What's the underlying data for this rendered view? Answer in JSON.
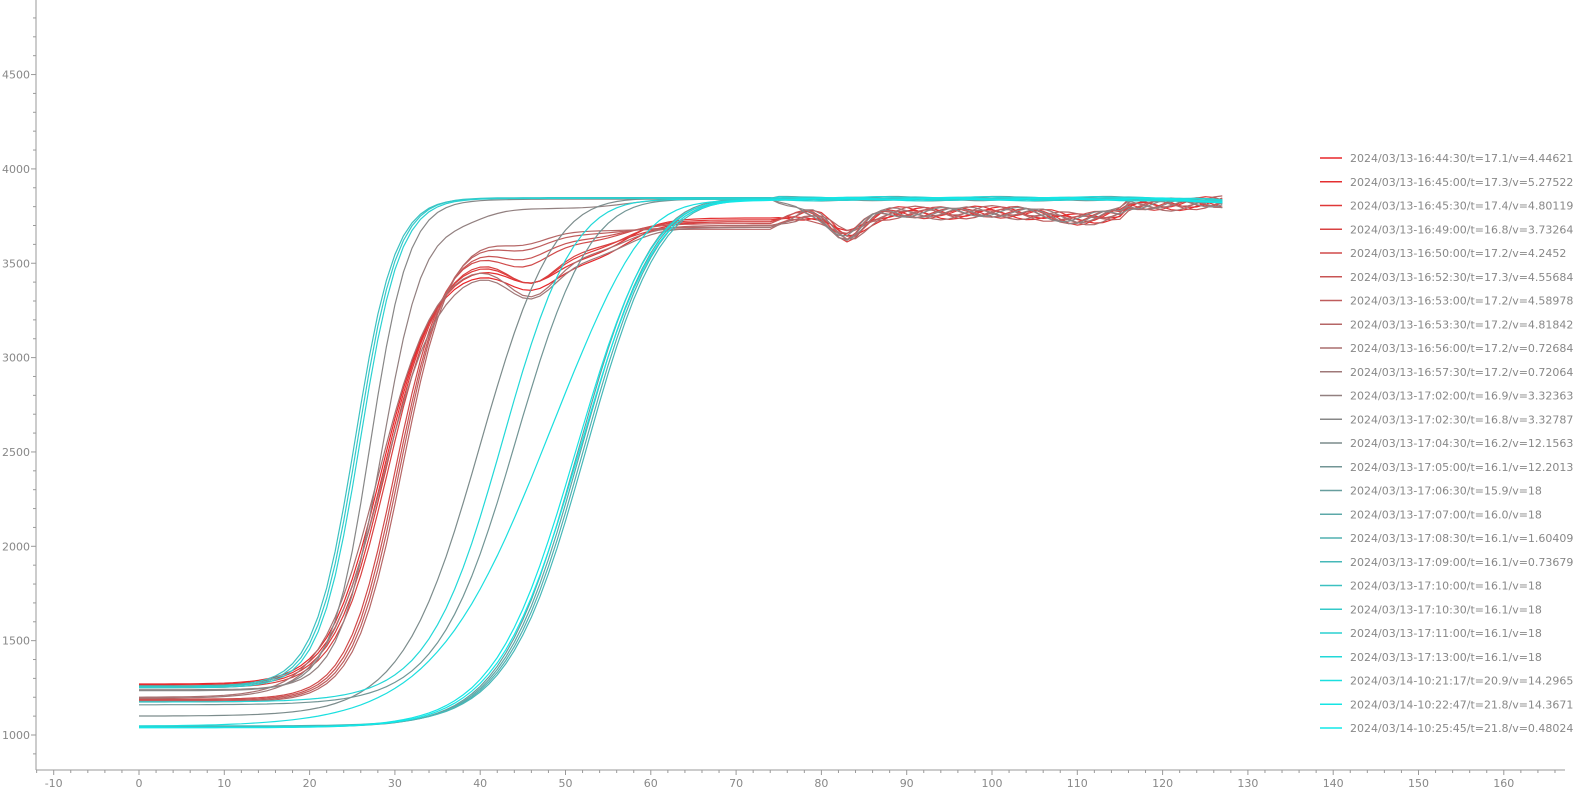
{
  "chart_data": {
    "type": "line",
    "xlim": [
      -12,
      166
    ],
    "ylim": [
      800,
      4850
    ],
    "x_ticks": [
      -10,
      0,
      10,
      20,
      30,
      40,
      50,
      60,
      70,
      80,
      90,
      100,
      110,
      120,
      130,
      140,
      150,
      160
    ],
    "y_ticks": [
      1000,
      1500,
      2000,
      2500,
      3000,
      3500,
      4000,
      4500
    ],
    "grid": false,
    "legend_position": "right",
    "series": [
      {
        "name": "2024/03/13-16:44:30/t=17.1/v=4.44621",
        "color": "#e8262a"
      },
      {
        "name": "2024/03/13-16:45:00/t=17.3/v=5.27522",
        "color": "#e42f30"
      },
      {
        "name": "2024/03/13-16:45:30/t=17.4/v=4.80119",
        "color": "#df3838"
      },
      {
        "name": "2024/03/13-16:49:00/t=16.8/v=3.73264",
        "color": "#d84141"
      },
      {
        "name": "2024/03/13-16:50:00/t=17.2/v=4.2452",
        "color": "#d04a4a"
      },
      {
        "name": "2024/03/13-16:52:30/t=17.3/v=4.55684",
        "color": "#c85454"
      },
      {
        "name": "2024/03/13-16:53:00/t=17.2/v=4.58978",
        "color": "#bf5d5d"
      },
      {
        "name": "2024/03/13-16:53:30/t=17.2/v=4.81842",
        "color": "#b56666"
      },
      {
        "name": "2024/03/13-16:56:00/t=17.2/v=0.72684",
        "color": "#aa6f6f"
      },
      {
        "name": "2024/03/13-16:57:30/t=17.2/v=0.72064",
        "color": "#9f7878"
      },
      {
        "name": "2024/03/13-17:02:00/t=16.9/v=3.32363",
        "color": "#928080"
      },
      {
        "name": "2024/03/13-17:02:30/t=16.8/v=3.32787",
        "color": "#878787"
      },
      {
        "name": "2024/03/13-17:04:30/t=16.2/v=12.1563",
        "color": "#7c8c8c"
      },
      {
        "name": "2024/03/13-17:05:00/t=16.1/v=12.2013",
        "color": "#729595"
      },
      {
        "name": "2024/03/13-17:06:30/t=15.9/v=18",
        "color": "#679e9e"
      },
      {
        "name": "2024/03/13-17:07:00/t=16.0/v=18",
        "color": "#5ca8a8"
      },
      {
        "name": "2024/03/13-17:08:30/t=16.1/v=1.60409",
        "color": "#51b0b0"
      },
      {
        "name": "2024/03/13-17:09:00/t=16.1/v=0.73679",
        "color": "#46b8b8"
      },
      {
        "name": "2024/03/13-17:10:00/t=16.1/v=18",
        "color": "#3cc1c1"
      },
      {
        "name": "2024/03/13-17:10:30/t=16.1/v=18",
        "color": "#33c9c9"
      },
      {
        "name": "2024/03/13-17:11:00/t=16.1/v=18",
        "color": "#2ad1d1"
      },
      {
        "name": "2024/03/13-17:13:00/t=16.1/v=18",
        "color": "#22d8d8"
      },
      {
        "name": "2024/03/14-10:21:17/t=20.9/v=14.2965",
        "color": "#1bdfdf"
      },
      {
        "name": "2024/03/14-10:22:47/t=21.8/v=14.3671",
        "color": "#16e4e4"
      },
      {
        "name": "2024/03/14-10:25:45/t=21.8/v=0.48024",
        "color": "#12e8e8"
      }
    ],
    "curves": [
      {
        "series": 0,
        "start": 1270,
        "mid": 28.3,
        "k": 0.33,
        "plateau": 3480,
        "dip_x": 46,
        "dip": 120,
        "late": 3720,
        "tail": 5
      },
      {
        "series": 1,
        "start": 1265,
        "mid": 28.6,
        "k": 0.33,
        "plateau": 3510,
        "dip_x": 46,
        "dip": 110,
        "late": 3740,
        "tail": -10
      },
      {
        "series": 2,
        "start": 1258,
        "mid": 28.9,
        "k": 0.33,
        "plateau": 3540,
        "dip_x": 46,
        "dip": 140,
        "late": 3730,
        "tail": 10
      },
      {
        "series": 3,
        "start": 1250,
        "mid": 29.2,
        "k": 0.33,
        "plateau": 3560,
        "dip_x": 46,
        "dip": 160,
        "late": 3700,
        "tail": -5
      },
      {
        "series": 4,
        "start": 1190,
        "mid": 30.0,
        "k": 0.36,
        "plateau": 3600,
        "dip_x": 45,
        "dip": 110,
        "late": 3720,
        "tail": 0
      },
      {
        "series": 5,
        "start": 1185,
        "mid": 30.3,
        "k": 0.36,
        "plateau": 3620,
        "dip_x": 45,
        "dip": 90,
        "late": 3710,
        "tail": 8
      },
      {
        "series": 6,
        "start": 1180,
        "mid": 30.6,
        "k": 0.36,
        "plateau": 3650,
        "dip_x": 45,
        "dip": 70,
        "late": 3690,
        "tail": -8
      },
      {
        "series": 7,
        "start": 1175,
        "mid": 30.9,
        "k": 0.36,
        "plateau": 3670,
        "dip_x": 45,
        "dip": 60,
        "late": 3680,
        "tail": 12
      },
      {
        "series": 8,
        "start": 1200,
        "mid": 28.0,
        "k": 0.3,
        "plateau": 3530,
        "dip_x": 46,
        "dip": 200,
        "late": 3700,
        "tail": -12
      },
      {
        "series": 9,
        "start": 1195,
        "mid": 28.5,
        "k": 0.3,
        "plateau": 3500,
        "dip_x": 46,
        "dip": 180,
        "late": 3690,
        "tail": 6
      },
      {
        "series": 10,
        "start": 1240,
        "mid": 28.5,
        "k": 0.4,
        "plateau": 3790,
        "dip_x": 38,
        "dip": 40,
        "late": 3840,
        "tail": 0
      },
      {
        "series": 11,
        "start": 1235,
        "mid": 27.2,
        "k": 0.44,
        "plateau": 3830,
        "dip_x": 0,
        "dip": 0,
        "late": 3840,
        "tail": 4
      },
      {
        "series": 12,
        "start": 1100,
        "mid": 39.8,
        "k": 0.22,
        "plateau": 3840,
        "dip_x": 0,
        "dip": 0,
        "late": 3845,
        "tail": -4
      },
      {
        "series": 13,
        "start": 1160,
        "mid": 44.0,
        "k": 0.22,
        "plateau": 3835,
        "dip_x": 0,
        "dip": 0,
        "late": 3840,
        "tail": 0
      },
      {
        "series": 14,
        "start": 1040,
        "mid": 51.3,
        "k": 0.22,
        "plateau": 3840,
        "dip_x": 0,
        "dip": 0,
        "late": 3845,
        "tail": 6
      },
      {
        "series": 15,
        "start": 1042,
        "mid": 51.6,
        "k": 0.22,
        "plateau": 3838,
        "dip_x": 0,
        "dip": 0,
        "late": 3842,
        "tail": -6
      },
      {
        "series": 16,
        "start": 1045,
        "mid": 51.9,
        "k": 0.22,
        "plateau": 3836,
        "dip_x": 0,
        "dip": 0,
        "late": 3840,
        "tail": 2
      },
      {
        "series": 17,
        "start": 1048,
        "mid": 52.2,
        "k": 0.22,
        "plateau": 3834,
        "dip_x": 0,
        "dip": 0,
        "late": 3838,
        "tail": -2
      },
      {
        "series": 18,
        "start": 1260,
        "mid": 25.4,
        "k": 0.42,
        "plateau": 3840,
        "dip_x": 0,
        "dip": 0,
        "late": 3845,
        "tail": 0
      },
      {
        "series": 19,
        "start": 1255,
        "mid": 25.7,
        "k": 0.42,
        "plateau": 3842,
        "dip_x": 0,
        "dip": 0,
        "late": 3848,
        "tail": 3
      },
      {
        "series": 20,
        "start": 1250,
        "mid": 26.0,
        "k": 0.42,
        "plateau": 3838,
        "dip_x": 0,
        "dip": 0,
        "late": 3844,
        "tail": -3
      },
      {
        "series": 21,
        "start": 1175,
        "mid": 42.5,
        "k": 0.23,
        "plateau": 3835,
        "dip_x": 0,
        "dip": 0,
        "late": 3840,
        "tail": 5
      },
      {
        "series": 22,
        "start": 1045,
        "mid": 47.0,
        "k": 0.15,
        "plateau": 3830,
        "dip_x": 0,
        "dip": 0,
        "late": 3836,
        "tail": -5
      },
      {
        "series": 23,
        "start": 1040,
        "mid": 51.0,
        "k": 0.21,
        "plateau": 3832,
        "dip_x": 0,
        "dip": 0,
        "late": 3838,
        "tail": 1
      },
      {
        "series": 24,
        "start": 1038,
        "mid": 51.4,
        "k": 0.21,
        "plateau": 3830,
        "dip_x": 0,
        "dip": 0,
        "late": 3834,
        "tail": -1
      }
    ]
  }
}
